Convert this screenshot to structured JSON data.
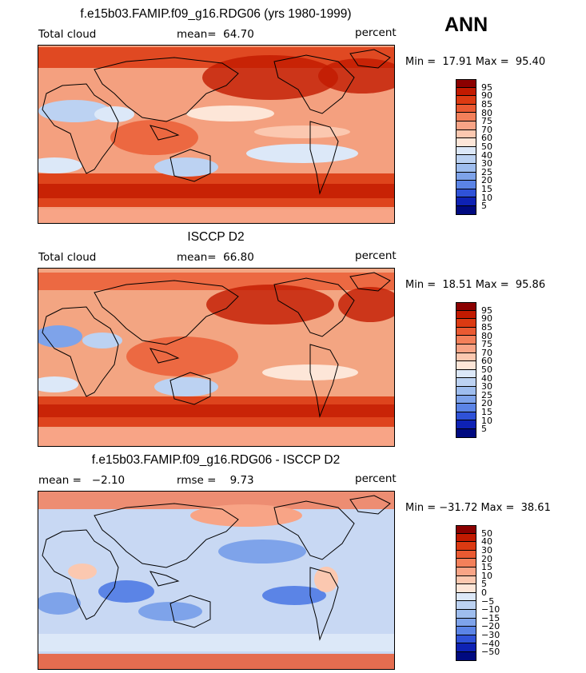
{
  "page": {
    "season": "ANN"
  },
  "panels": [
    {
      "title": "f.e15b03.FAMIP.f09_g16.RDG06 (yrs 1980-1999)",
      "left": "Total cloud",
      "center": "mean=  64.70",
      "right": "percent",
      "minmax": "Min =  17.91 Max =  95.40",
      "bg": "#f4a07f"
    },
    {
      "title": "ISCCP D2",
      "left": "Total cloud",
      "center": "mean=  66.80",
      "right": "percent",
      "minmax": "Min =  18.51 Max =  95.86",
      "bg": "#f3a582"
    },
    {
      "title": "f.e15b03.FAMIP.f09_g16.RDG06 - ISCCP D2",
      "left": "mean =   −2.10",
      "center": "rmse =    9.73",
      "right": "percent",
      "minmax": "Min = −31.72 Max =  38.61",
      "bg": "#c8d8f3"
    }
  ],
  "legends": [
    {
      "levels": [
        "95",
        "90",
        "85",
        "80",
        "75",
        "70",
        "60",
        "50",
        "40",
        "30",
        "25",
        "20",
        "15",
        "10",
        "5"
      ],
      "colors": [
        "#8b0000",
        "#c21a00",
        "#dc3a12",
        "#ea5a32",
        "#f3805a",
        "#f8a486",
        "#fbc8b0",
        "#fde6d8",
        "#dce8f8",
        "#bcd2f2",
        "#9ebdee",
        "#7ea3ea",
        "#5b84e6",
        "#2f52d8",
        "#0e22b4",
        "#000a80"
      ]
    },
    {
      "levels": [
        "95",
        "90",
        "85",
        "80",
        "75",
        "70",
        "60",
        "50",
        "40",
        "30",
        "25",
        "20",
        "15",
        "10",
        "5"
      ],
      "colors": [
        "#8b0000",
        "#c21a00",
        "#dc3a12",
        "#ea5a32",
        "#f3805a",
        "#f8a486",
        "#fbc8b0",
        "#fde6d8",
        "#dce8f8",
        "#bcd2f2",
        "#9ebdee",
        "#7ea3ea",
        "#5b84e6",
        "#2f52d8",
        "#0e22b4",
        "#000a80"
      ]
    },
    {
      "levels": [
        "50",
        "40",
        "30",
        "20",
        "15",
        "10",
        "5",
        "0",
        "−5",
        "−10",
        "−15",
        "−20",
        "−30",
        "−40",
        "−50"
      ],
      "colors": [
        "#8b0000",
        "#c21a00",
        "#dc3a12",
        "#ea5a32",
        "#f3805a",
        "#f8a486",
        "#fbc8b0",
        "#fde6d8",
        "#dce8f8",
        "#bcd2f2",
        "#9ebdee",
        "#7ea3ea",
        "#5b84e6",
        "#2f52d8",
        "#0e22b4",
        "#000a80"
      ]
    }
  ]
}
